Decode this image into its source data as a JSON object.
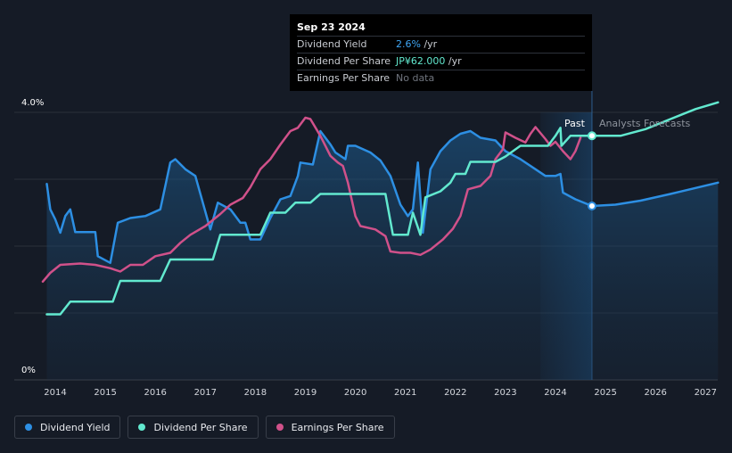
{
  "colors": {
    "dividend_yield": "#2d8fe3",
    "dividend_per_share": "#62e9cf",
    "earnings_per_share": "#d0518a",
    "background": "#151b26"
  },
  "tooltip": {
    "date": "Sep 23 2024",
    "rows": [
      {
        "label": "Dividend Yield",
        "value": "2.6%",
        "unit": " /yr"
      },
      {
        "label": "Dividend Per Share",
        "value": "JP¥62.000",
        "unit": " /yr"
      },
      {
        "label": "Earnings Per Share",
        "value": "No data",
        "unit": ""
      }
    ]
  },
  "regions": {
    "past": "Past",
    "forecast": "Analysts Forecasts"
  },
  "legend": [
    {
      "label": "Dividend Yield",
      "color": "#2d8fe3"
    },
    {
      "label": "Dividend Per Share",
      "color": "#62e9cf"
    },
    {
      "label": "Earnings Per Share",
      "color": "#d0518a"
    }
  ],
  "chart_data": {
    "type": "line",
    "title": "",
    "x_ticks": [
      "2014",
      "2015",
      "2016",
      "2017",
      "2018",
      "2019",
      "2020",
      "2021",
      "2022",
      "2023",
      "2024",
      "2025",
      "2026",
      "2027"
    ],
    "y_ticks": [
      "0%",
      "4.0%"
    ],
    "xlim": [
      2013.75,
      2027.25
    ],
    "ylim": [
      0,
      4.0
    ],
    "grid": true,
    "legend_position": "bottom-left",
    "past_shading_start": 2023.7,
    "cursor_x": 2024.73,
    "forecast_start": 2024.73,
    "series": [
      {
        "name": "Dividend Yield",
        "axis": "left-%",
        "fill": true,
        "points": [
          [
            2013.83,
            2.93
          ],
          [
            2013.9,
            2.55
          ],
          [
            2014.0,
            2.4
          ],
          [
            2014.1,
            2.2
          ],
          [
            2014.2,
            2.45
          ],
          [
            2014.3,
            2.55
          ],
          [
            2014.4,
            2.21
          ],
          [
            2014.5,
            2.21
          ],
          [
            2014.6,
            2.21
          ],
          [
            2014.8,
            2.21
          ],
          [
            2014.85,
            1.85
          ],
          [
            2015.1,
            1.75
          ],
          [
            2015.25,
            2.35
          ],
          [
            2015.5,
            2.42
          ],
          [
            2015.8,
            2.45
          ],
          [
            2016.1,
            2.55
          ],
          [
            2016.3,
            3.25
          ],
          [
            2016.4,
            3.3
          ],
          [
            2016.6,
            3.15
          ],
          [
            2016.8,
            3.05
          ],
          [
            2016.95,
            2.65
          ],
          [
            2017.1,
            2.25
          ],
          [
            2017.25,
            2.65
          ],
          [
            2017.5,
            2.55
          ],
          [
            2017.7,
            2.35
          ],
          [
            2017.8,
            2.35
          ],
          [
            2017.9,
            2.1
          ],
          [
            2018.1,
            2.1
          ],
          [
            2018.3,
            2.42
          ],
          [
            2018.5,
            2.7
          ],
          [
            2018.7,
            2.75
          ],
          [
            2018.85,
            3.05
          ],
          [
            2018.9,
            3.25
          ],
          [
            2019.15,
            3.22
          ],
          [
            2019.3,
            3.72
          ],
          [
            2019.5,
            3.52
          ],
          [
            2019.6,
            3.4
          ],
          [
            2019.8,
            3.3
          ],
          [
            2019.85,
            3.5
          ],
          [
            2020.0,
            3.5
          ],
          [
            2020.3,
            3.4
          ],
          [
            2020.5,
            3.28
          ],
          [
            2020.7,
            3.05
          ],
          [
            2020.9,
            2.62
          ],
          [
            2021.05,
            2.45
          ],
          [
            2021.15,
            2.55
          ],
          [
            2021.25,
            3.25
          ],
          [
            2021.35,
            2.2
          ],
          [
            2021.5,
            3.15
          ],
          [
            2021.7,
            3.42
          ],
          [
            2021.9,
            3.58
          ],
          [
            2022.1,
            3.68
          ],
          [
            2022.3,
            3.72
          ],
          [
            2022.5,
            3.62
          ],
          [
            2022.8,
            3.58
          ],
          [
            2023.0,
            3.42
          ],
          [
            2023.3,
            3.3
          ],
          [
            2023.6,
            3.15
          ],
          [
            2023.8,
            3.05
          ],
          [
            2024.0,
            3.05
          ],
          [
            2024.1,
            3.08
          ],
          [
            2024.15,
            2.8
          ],
          [
            2024.4,
            2.7
          ],
          [
            2024.73,
            2.6
          ],
          [
            2025.2,
            2.62
          ],
          [
            2025.7,
            2.68
          ],
          [
            2026.3,
            2.78
          ],
          [
            2026.8,
            2.87
          ],
          [
            2027.25,
            2.95
          ]
        ]
      },
      {
        "name": "Dividend Per Share",
        "axis": "right",
        "points": [
          [
            2013.83,
            0.98
          ],
          [
            2014.1,
            0.98
          ],
          [
            2014.3,
            1.17
          ],
          [
            2014.6,
            1.17
          ],
          [
            2015.0,
            1.17
          ],
          [
            2015.15,
            1.17
          ],
          [
            2015.3,
            1.48
          ],
          [
            2015.6,
            1.48
          ],
          [
            2016.1,
            1.48
          ],
          [
            2016.3,
            1.8
          ],
          [
            2016.6,
            1.8
          ],
          [
            2017.15,
            1.8
          ],
          [
            2017.3,
            2.17
          ],
          [
            2017.6,
            2.17
          ],
          [
            2018.1,
            2.17
          ],
          [
            2018.3,
            2.5
          ],
          [
            2018.6,
            2.5
          ],
          [
            2018.8,
            2.65
          ],
          [
            2019.1,
            2.65
          ],
          [
            2019.3,
            2.78
          ],
          [
            2019.7,
            2.78
          ],
          [
            2020.2,
            2.78
          ],
          [
            2020.6,
            2.78
          ],
          [
            2020.75,
            2.17
          ],
          [
            2021.05,
            2.17
          ],
          [
            2021.15,
            2.5
          ],
          [
            2021.3,
            2.17
          ],
          [
            2021.4,
            2.73
          ],
          [
            2021.7,
            2.82
          ],
          [
            2021.9,
            2.95
          ],
          [
            2022.0,
            3.08
          ],
          [
            2022.2,
            3.08
          ],
          [
            2022.3,
            3.26
          ],
          [
            2022.5,
            3.26
          ],
          [
            2022.7,
            3.26
          ],
          [
            2022.8,
            3.26
          ],
          [
            2023.0,
            3.34
          ],
          [
            2023.3,
            3.5
          ],
          [
            2023.6,
            3.5
          ],
          [
            2023.85,
            3.5
          ],
          [
            2024.0,
            3.65
          ],
          [
            2024.1,
            3.77
          ],
          [
            2024.12,
            3.5
          ],
          [
            2024.3,
            3.65
          ],
          [
            2024.73,
            3.65
          ],
          [
            2025.3,
            3.65
          ],
          [
            2025.8,
            3.75
          ],
          [
            2026.3,
            3.9
          ],
          [
            2026.8,
            4.05
          ],
          [
            2027.25,
            4.15
          ]
        ]
      },
      {
        "name": "Earnings Per Share",
        "axis": "right",
        "points": [
          [
            2013.75,
            1.47
          ],
          [
            2013.9,
            1.6
          ],
          [
            2014.1,
            1.72
          ],
          [
            2014.5,
            1.74
          ],
          [
            2014.8,
            1.72
          ],
          [
            2015.1,
            1.67
          ],
          [
            2015.3,
            1.62
          ],
          [
            2015.5,
            1.72
          ],
          [
            2015.75,
            1.72
          ],
          [
            2016.0,
            1.85
          ],
          [
            2016.3,
            1.9
          ],
          [
            2016.5,
            2.05
          ],
          [
            2016.7,
            2.17
          ],
          [
            2017.0,
            2.3
          ],
          [
            2017.3,
            2.48
          ],
          [
            2017.5,
            2.62
          ],
          [
            2017.75,
            2.72
          ],
          [
            2017.9,
            2.88
          ],
          [
            2018.1,
            3.15
          ],
          [
            2018.3,
            3.3
          ],
          [
            2018.5,
            3.52
          ],
          [
            2018.7,
            3.72
          ],
          [
            2018.85,
            3.77
          ],
          [
            2019.0,
            3.92
          ],
          [
            2019.1,
            3.9
          ],
          [
            2019.3,
            3.65
          ],
          [
            2019.5,
            3.35
          ],
          [
            2019.65,
            3.25
          ],
          [
            2019.75,
            3.2
          ],
          [
            2019.85,
            2.95
          ],
          [
            2020.0,
            2.45
          ],
          [
            2020.1,
            2.3
          ],
          [
            2020.4,
            2.25
          ],
          [
            2020.6,
            2.15
          ],
          [
            2020.7,
            1.92
          ],
          [
            2020.9,
            1.9
          ],
          [
            2021.1,
            1.9
          ],
          [
            2021.3,
            1.87
          ],
          [
            2021.5,
            1.95
          ],
          [
            2021.75,
            2.1
          ],
          [
            2021.95,
            2.26
          ],
          [
            2022.1,
            2.45
          ],
          [
            2022.25,
            2.85
          ],
          [
            2022.5,
            2.9
          ],
          [
            2022.7,
            3.05
          ],
          [
            2022.8,
            3.3
          ],
          [
            2022.95,
            3.45
          ],
          [
            2023.0,
            3.7
          ],
          [
            2023.2,
            3.62
          ],
          [
            2023.4,
            3.55
          ],
          [
            2023.5,
            3.68
          ],
          [
            2023.6,
            3.78
          ],
          [
            2023.8,
            3.6
          ],
          [
            2023.9,
            3.5
          ],
          [
            2024.0,
            3.56
          ],
          [
            2024.15,
            3.42
          ],
          [
            2024.3,
            3.3
          ],
          [
            2024.4,
            3.42
          ],
          [
            2024.5,
            3.62
          ]
        ]
      }
    ]
  }
}
